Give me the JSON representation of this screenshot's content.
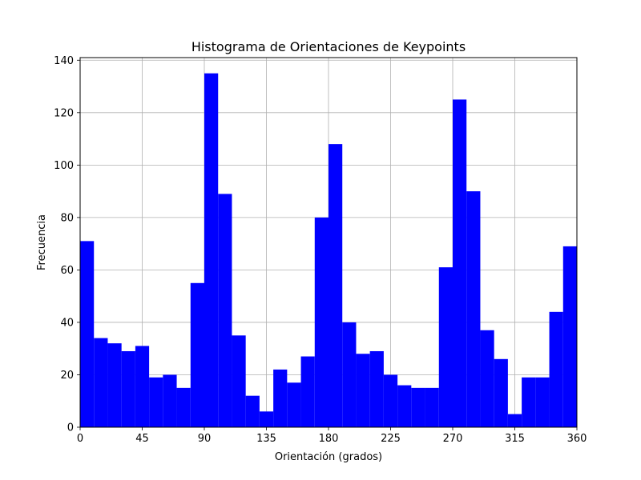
{
  "chart_data": {
    "type": "bar",
    "title": "Histograma de Orientaciones de Keypoints",
    "xlabel": "Orientación (grados)",
    "ylabel": "Frecuencia",
    "xlim": [
      0,
      360
    ],
    "ylim": [
      0,
      141
    ],
    "xticks": [
      0,
      45,
      90,
      135,
      180,
      225,
      270,
      315,
      360
    ],
    "yticks": [
      0,
      20,
      40,
      60,
      80,
      100,
      120,
      140
    ],
    "bin_width": 10,
    "bin_edges": [
      0,
      10,
      20,
      30,
      40,
      50,
      60,
      70,
      80,
      90,
      100,
      110,
      120,
      130,
      140,
      150,
      160,
      170,
      180,
      190,
      200,
      210,
      220,
      230,
      240,
      250,
      260,
      270,
      280,
      290,
      300,
      310,
      320,
      330,
      340,
      350,
      360
    ],
    "values": [
      71,
      34,
      32,
      29,
      31,
      19,
      20,
      15,
      55,
      135,
      89,
      35,
      12,
      6,
      22,
      17,
      27,
      80,
      108,
      40,
      28,
      29,
      20,
      16,
      15,
      15,
      61,
      125,
      90,
      37,
      26,
      5,
      19,
      19,
      44,
      69
    ],
    "bar_color": "#0000ff",
    "grid": true
  }
}
